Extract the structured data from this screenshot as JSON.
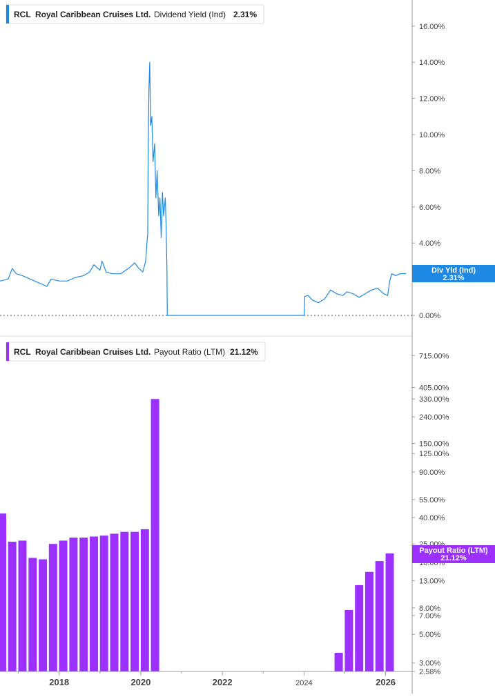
{
  "colors": {
    "yield_line": "#1e88e5",
    "payout_bar": "#9b30ff",
    "axis": "#999999",
    "tick_text": "#444444"
  },
  "chart_data": [
    {
      "type": "line",
      "panel": "top",
      "ticker": "RCL",
      "company": "Royal Caribbean Cruises Ltd.",
      "metric": "Dividend Yield (Ind)",
      "current_value": "2.31%",
      "tag_label": "Div Yld (Ind)",
      "tag_value": "2.31%",
      "y_scale": "linear",
      "ylim": [
        0,
        17
      ],
      "y_ticks": [
        0,
        2,
        4,
        6,
        8,
        10,
        12,
        14,
        16
      ],
      "y_tick_labels": [
        "0.00%",
        "2.00%",
        "4.00%",
        "6.00%",
        "8.00%",
        "10.00%",
        "12.00%",
        "14.00%",
        "16.00%"
      ],
      "xlim": [
        2016.55,
        2026.65
      ],
      "grid": false,
      "x": [
        2016.55,
        2016.75,
        2016.85,
        2016.95,
        2017.1,
        2017.3,
        2017.5,
        2017.6,
        2017.7,
        2017.8,
        2018.0,
        2018.2,
        2018.4,
        2018.6,
        2018.75,
        2018.85,
        2019.0,
        2019.05,
        2019.15,
        2019.3,
        2019.5,
        2019.7,
        2019.85,
        2019.95,
        2020.05,
        2020.12,
        2020.15,
        2020.17,
        2020.18,
        2020.2,
        2020.22,
        2020.24,
        2020.27,
        2020.3,
        2020.34,
        2020.37,
        2020.4,
        2020.44,
        2020.47,
        2020.5,
        2020.53,
        2020.56,
        2020.6,
        2020.62,
        2020.64,
        2020.65,
        2024.0,
        2024.02,
        2024.1,
        2024.2,
        2024.35,
        2024.5,
        2024.65,
        2024.8,
        2024.95,
        2025.05,
        2025.2,
        2025.35,
        2025.5,
        2025.65,
        2025.8,
        2025.95,
        2026.05,
        2026.1,
        2026.15,
        2026.25,
        2026.35,
        2026.5
      ],
      "y": [
        1.9,
        2.0,
        2.6,
        2.3,
        2.2,
        2.0,
        1.8,
        1.7,
        1.6,
        2.0,
        1.9,
        1.9,
        2.1,
        2.2,
        2.4,
        2.8,
        2.5,
        3.0,
        2.4,
        2.3,
        2.3,
        2.6,
        2.9,
        2.6,
        2.4,
        3.0,
        4.0,
        4.5,
        9.0,
        12.5,
        14.0,
        10.5,
        11.0,
        8.5,
        9.5,
        6.5,
        8.0,
        5.5,
        6.5,
        4.3,
        6.8,
        5.5,
        6.5,
        5.0,
        2.5,
        0.0,
        0.0,
        1.05,
        1.1,
        0.85,
        0.7,
        0.9,
        1.4,
        1.2,
        1.1,
        1.3,
        1.2,
        1.0,
        1.2,
        1.4,
        1.5,
        1.2,
        1.1,
        1.9,
        2.3,
        2.2,
        2.3,
        2.31
      ]
    },
    {
      "type": "bar",
      "panel": "bottom",
      "ticker": "RCL",
      "company": "Royal Caribbean Cruises Ltd.",
      "metric": "Payout Ratio (LTM)",
      "current_value": "21.12%",
      "tag_label": "Payout Ratio (LTM)",
      "tag_value": "21.12%",
      "y_scale": "log",
      "ylim": [
        2.58,
        1000
      ],
      "y_ticks": [
        2.58,
        3,
        5,
        7,
        8,
        13,
        18,
        25,
        40,
        55,
        90,
        125,
        150,
        240,
        330,
        405,
        715
      ],
      "y_tick_labels": [
        "2.58%",
        "3.00%",
        "5.00%",
        "7.00%",
        "8.00%",
        "13.00%",
        "18.00%",
        "25.00%",
        "40.00%",
        "55.00%",
        "90.00%",
        "125.00%",
        "150.00%",
        "240.00%",
        "330.00%",
        "405.00%",
        "715.00%"
      ],
      "xlim": [
        2016.55,
        2026.65
      ],
      "grid": false,
      "x": [
        2016.6,
        2016.85,
        2017.1,
        2017.35,
        2017.6,
        2017.85,
        2018.1,
        2018.35,
        2018.6,
        2018.85,
        2019.1,
        2019.35,
        2019.6,
        2019.85,
        2020.1,
        2020.35,
        2024.85,
        2025.1,
        2025.35,
        2025.6,
        2025.85,
        2026.1
      ],
      "values": [
        43,
        26,
        26.5,
        19.5,
        19,
        25,
        26.5,
        28,
        28,
        28.5,
        29,
        30,
        31,
        31,
        32.5,
        330,
        3.6,
        7.7,
        12,
        15.2,
        18.4,
        21.12
      ]
    }
  ],
  "x_axis": {
    "tick_labels": [
      "2018",
      "2020",
      "2022",
      "2024",
      "2026"
    ],
    "tick_values": [
      2018,
      2020,
      2022,
      2024,
      2026
    ],
    "minor_years": [
      2017,
      2019,
      2021,
      2023,
      2025
    ]
  }
}
